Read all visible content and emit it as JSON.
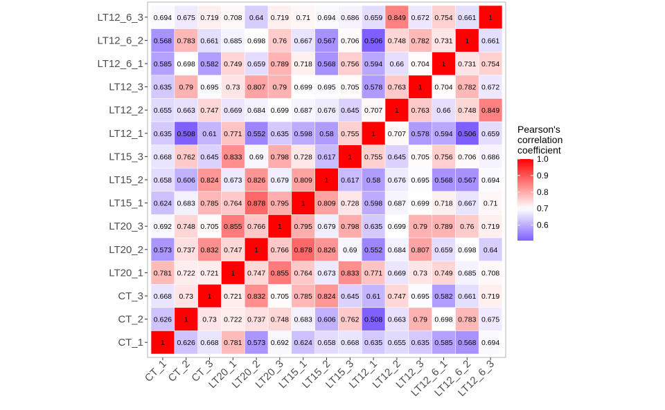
{
  "chart_data": {
    "type": "heatmap",
    "title": "",
    "xlabel": "",
    "ylabel": "",
    "x_categories": [
      "CT_1",
      "CT_2",
      "CT_3",
      "LT20_1",
      "LT20_2",
      "LT20_3",
      "LT15_1",
      "LT15_2",
      "LT15_3",
      "LT12_1",
      "LT12_2",
      "LT12_3",
      "LT12_6_1",
      "LT12_6_2",
      "LT12_6_3"
    ],
    "y_categories_top_to_bottom": [
      "LT12_6_3",
      "LT12_6_2",
      "LT12_6_1",
      "LT12_3",
      "LT12_2",
      "LT12_1",
      "LT15_3",
      "LT15_2",
      "LT15_1",
      "LT20_3",
      "LT20_2",
      "LT20_1",
      "CT_3",
      "CT_2",
      "CT_1"
    ],
    "values": [
      [
        "0.694",
        "0.675",
        "0.719",
        "0.708",
        "0.64",
        "0.719",
        "0.71",
        "0.694",
        "0.686",
        "0.659",
        "0.849",
        "0.672",
        "0.754",
        "0.661",
        "1"
      ],
      [
        "0.568",
        "0.783",
        "0.661",
        "0.685",
        "0.698",
        "0.76",
        "0.667",
        "0.567",
        "0.706",
        "0.506",
        "0.748",
        "0.782",
        "0.731",
        "1",
        "0.661"
      ],
      [
        "0.585",
        "0.698",
        "0.582",
        "0.749",
        "0.659",
        "0.789",
        "0.718",
        "0.568",
        "0.756",
        "0.594",
        "0.66",
        "0.704",
        "1",
        "0.731",
        "0.754"
      ],
      [
        "0.635",
        "0.79",
        "0.695",
        "0.73",
        "0.807",
        "0.79",
        "0.699",
        "0.695",
        "0.705",
        "0.578",
        "0.763",
        "1",
        "0.704",
        "0.782",
        "0.672"
      ],
      [
        "0.655",
        "0.663",
        "0.747",
        "0.669",
        "0.684",
        "0.699",
        "0.687",
        "0.676",
        "0.645",
        "0.707",
        "1",
        "0.763",
        "0.66",
        "0.748",
        "0.849"
      ],
      [
        "0.635",
        "0.508",
        "0.61",
        "0.771",
        "0.552",
        "0.635",
        "0.598",
        "0.58",
        "0.755",
        "1",
        "0.707",
        "0.578",
        "0.594",
        "0.506",
        "0.659"
      ],
      [
        "0.668",
        "0.762",
        "0.645",
        "0.833",
        "0.69",
        "0.798",
        "0.728",
        "0.617",
        "1",
        "0.755",
        "0.645",
        "0.705",
        "0.756",
        "0.706",
        "0.686"
      ],
      [
        "0.658",
        "0.606",
        "0.824",
        "0.673",
        "0.826",
        "0.679",
        "0.809",
        "1",
        "0.617",
        "0.58",
        "0.676",
        "0.695",
        "0.568",
        "0.567",
        "0.694"
      ],
      [
        "0.624",
        "0.683",
        "0.785",
        "0.764",
        "0.878",
        "0.795",
        "1",
        "0.809",
        "0.728",
        "0.598",
        "0.687",
        "0.699",
        "0.718",
        "0.667",
        "0.71"
      ],
      [
        "0.692",
        "0.748",
        "0.705",
        "0.855",
        "0.766",
        "1",
        "0.795",
        "0.679",
        "0.798",
        "0.635",
        "0.699",
        "0.79",
        "0.789",
        "0.76",
        "0.719"
      ],
      [
        "0.573",
        "0.737",
        "0.832",
        "0.747",
        "1",
        "0.766",
        "0.878",
        "0.826",
        "0.69",
        "0.552",
        "0.684",
        "0.807",
        "0.659",
        "0.698",
        "0.64"
      ],
      [
        "0.781",
        "0.722",
        "0.721",
        "1",
        "0.747",
        "0.855",
        "0.764",
        "0.673",
        "0.833",
        "0.771",
        "0.669",
        "0.73",
        "0.749",
        "0.685",
        "0.708"
      ],
      [
        "0.668",
        "0.73",
        "1",
        "0.721",
        "0.832",
        "0.705",
        "0.785",
        "0.824",
        "0.645",
        "0.61",
        "0.747",
        "0.695",
        "0.582",
        "0.661",
        "0.719"
      ],
      [
        "0.626",
        "1",
        "0.73",
        "0.722",
        "0.737",
        "0.748",
        "0.683",
        "0.606",
        "0.762",
        "0.508",
        "0.663",
        "0.79",
        "0.698",
        "0.783",
        "0.675"
      ],
      [
        "1",
        "0.626",
        "0.668",
        "0.781",
        "0.573",
        "0.692",
        "0.624",
        "0.658",
        "0.668",
        "0.635",
        "0.655",
        "0.635",
        "0.585",
        "0.568",
        "0.694"
      ]
    ],
    "legend": {
      "title_lines": [
        "Pearson's",
        "correlation",
        "coefficient"
      ],
      "ticks": [
        "0.6",
        "0.7",
        "0.8",
        "0.9",
        "1.0"
      ],
      "range": [
        0.506,
        1.0
      ],
      "placement": "right",
      "colors": {
        "low": "#7f5fff",
        "mid": "#ffffff",
        "high": "#ff0000",
        "mid_value": 0.7
      }
    },
    "grid": false
  }
}
